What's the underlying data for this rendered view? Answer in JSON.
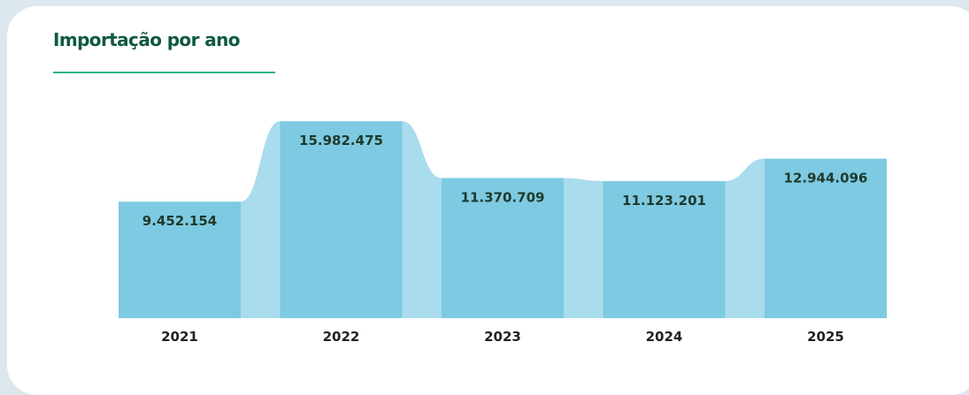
{
  "header": {
    "title": "Importação por ano"
  },
  "chart_data": {
    "type": "bar",
    "title": "Importação por ano",
    "categories": [
      "2021",
      "2022",
      "2023",
      "2024",
      "2025"
    ],
    "values": [
      9452154,
      15982475,
      11370709,
      11123201,
      12944096
    ],
    "value_labels": [
      "9.452.154",
      "15.982.475",
      "11.370.709",
      "11.123.201",
      "12.944.096"
    ],
    "xlabel": "",
    "ylabel": "",
    "ylim": [
      0,
      17500000
    ],
    "grid": false,
    "legend": "none",
    "colors": {
      "bar": "#7ecae2",
      "connector": "#a9dcec",
      "baseline": "#a9dcec"
    }
  }
}
